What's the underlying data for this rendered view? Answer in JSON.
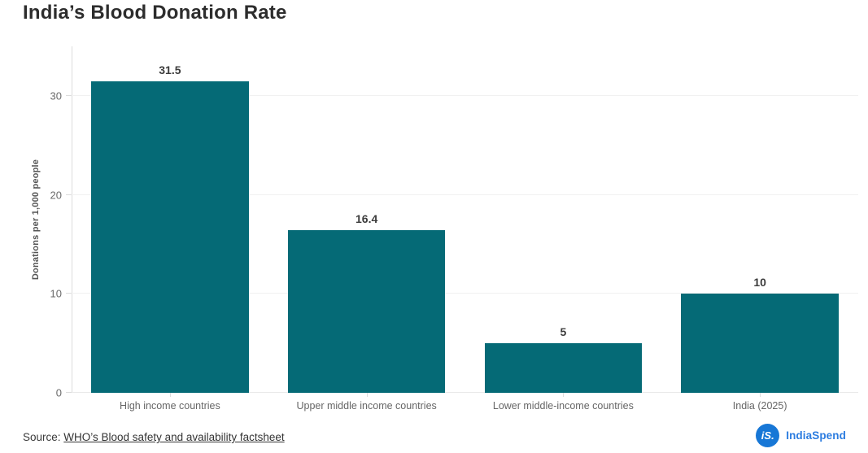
{
  "page": {
    "title": "India’s Blood Donation Rate"
  },
  "chart_data": {
    "type": "bar",
    "title": "India’s Blood Donation Rate",
    "categories": [
      "High income countries",
      "Upper middle income countries",
      "Lower middle-income countries",
      "India (2025)"
    ],
    "values": [
      31.5,
      16.4,
      5,
      10
    ],
    "value_labels": [
      "31.5",
      "16.4",
      "5",
      "10"
    ],
    "xlabel": "",
    "ylabel": "Donations per 1,000 people",
    "yticks": [
      0,
      10,
      20,
      30
    ],
    "ylim": [
      0,
      35
    ],
    "grid": true,
    "legend": false,
    "bar_color": "#056a76"
  },
  "footer": {
    "source_prefix": "Source: ",
    "source_link": "WHO’s Blood safety and availability factsheet",
    "logo_monogram": "iS.",
    "logo_name": "IndiaSpend"
  },
  "colors": {
    "bar": "#056a76",
    "grid": "#f1f1f1",
    "axis_line": "#dcdcdc",
    "tick_text": "#6b6b6b",
    "value_text": "#3c3c3c",
    "title_text": "#2d2d2d",
    "logo_blue": "#1777d6",
    "logo_text_blue": "#2b7ce0"
  }
}
